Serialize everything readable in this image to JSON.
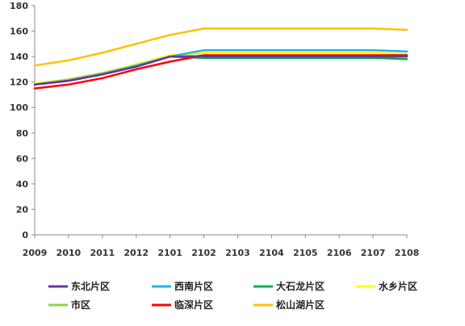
{
  "chart_data": {
    "type": "line",
    "title": "",
    "xlabel": "",
    "ylabel": "",
    "categories": [
      "2009",
      "2010",
      "2011",
      "2012",
      "2101",
      "2102",
      "2103",
      "2104",
      "2105",
      "2106",
      "2107",
      "2108"
    ],
    "ylim": [
      0,
      180
    ],
    "yticks": [
      0,
      20,
      40,
      60,
      80,
      100,
      120,
      140,
      160,
      180
    ],
    "grid": false,
    "legend_position": "bottom",
    "series": [
      {
        "name": "东北片区",
        "color": "#7030A0",
        "values": [
          118,
          121,
          126,
          132,
          140,
          140,
          140,
          140,
          140,
          140,
          140,
          140
        ]
      },
      {
        "name": "西南片区",
        "color": "#1FB6E8",
        "values": [
          118,
          121,
          126,
          133,
          140,
          145,
          145,
          145,
          145,
          145,
          145,
          144
        ]
      },
      {
        "name": "大石龙片区",
        "color": "#00B050",
        "values": [
          118,
          121,
          126,
          132,
          140,
          139,
          139,
          139,
          139,
          139,
          139,
          138
        ]
      },
      {
        "name": "水乡片区",
        "color": "#FFFF00",
        "values": [
          119,
          122,
          127,
          134,
          141,
          143,
          143,
          143,
          143,
          143,
          143,
          142
        ]
      },
      {
        "name": "市区",
        "color": "#92D050",
        "values": [
          118,
          122,
          127,
          133,
          140,
          141,
          141,
          141,
          141,
          141,
          141,
          141
        ]
      },
      {
        "name": "临深片区",
        "color": "#FF0000",
        "values": [
          115,
          118,
          123,
          130,
          136,
          141,
          141,
          141,
          141,
          141,
          141,
          141
        ]
      },
      {
        "name": "松山湖片区",
        "color": "#FFC000",
        "values": [
          133,
          137,
          143,
          150,
          157,
          162,
          162,
          162,
          162,
          162,
          162,
          161
        ]
      }
    ]
  }
}
